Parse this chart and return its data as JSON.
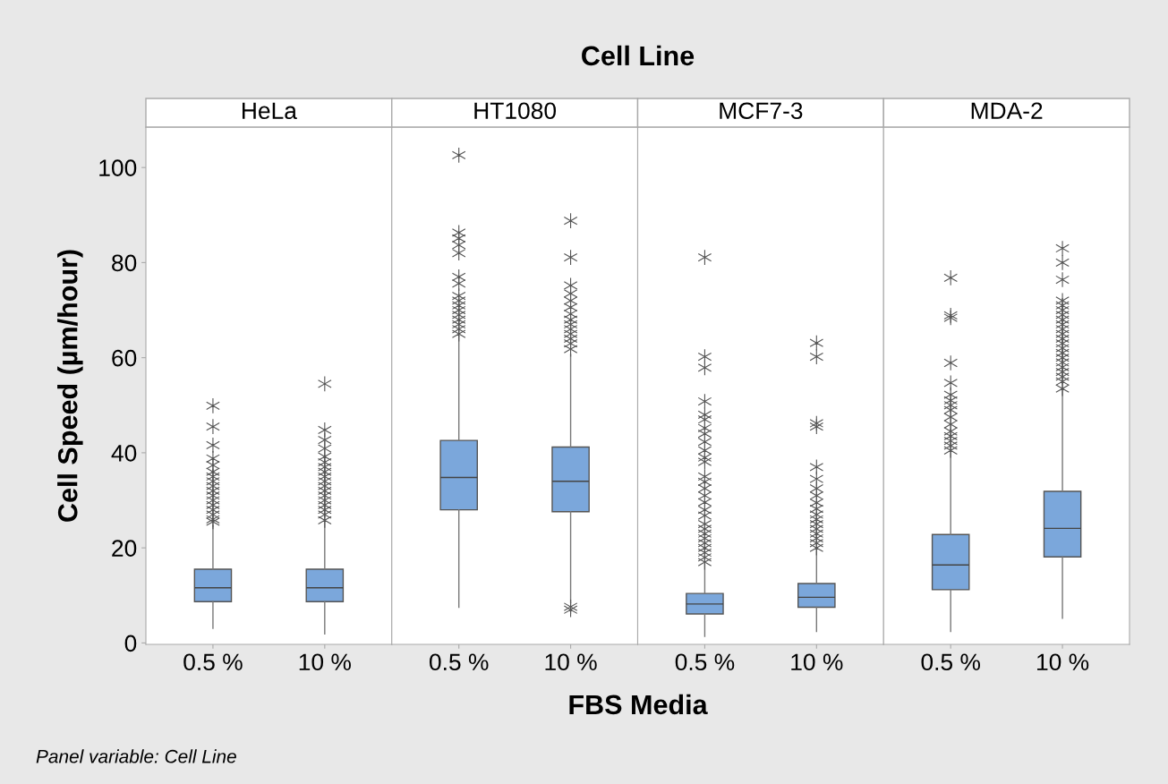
{
  "chart_data": [
    {
      "type": "box",
      "title": "HeLa",
      "ylabel": "Cell Speed (µm/hour)",
      "annotations": [
        "Cell Line",
        "FBS Media",
        "Panel variable: Cell Line"
      ],
      "categories": [
        "0.5 %",
        "10 %"
      ],
      "color": "#7ba7db",
      "marker": "star",
      "ylim": [
        -0.3,
        108.5
      ],
      "yticks": [
        0,
        20,
        40,
        60,
        80,
        100
      ],
      "grid": false,
      "boxes": [
        {
          "low": 3.1,
          "q1": 8.7,
          "median": 11.6,
          "q3": 15.5,
          "high": 24.6,
          "outliers": [
            25.5,
            26,
            27,
            28,
            29,
            30,
            31,
            32,
            33,
            34,
            35,
            36,
            37.4,
            38.8,
            41.6,
            45.5,
            49.9
          ]
        },
        {
          "low": 1.9,
          "q1": 8.7,
          "median": 11.6,
          "q3": 15.5,
          "high": 25.4,
          "outliers": [
            25.8,
            27,
            28,
            29,
            30,
            31,
            32,
            33,
            34,
            35,
            36,
            37,
            38,
            39.2,
            40.9,
            42.7,
            44.8,
            54.5
          ]
        }
      ]
    },
    {
      "type": "box",
      "title": "HT1080",
      "categories": [
        "0.5 %",
        "10 %"
      ],
      "color": "#7ba7db",
      "marker": "star",
      "ylim": [
        -0.3,
        108.5
      ],
      "tick_labels": "x",
      "grid": false,
      "boxes": [
        {
          "low": 7.5,
          "q1": 28.0,
          "median": 34.8,
          "q3": 42.6,
          "high": 64.6,
          "outliers": [
            65,
            66,
            67,
            68,
            69,
            70,
            71,
            72,
            73,
            75.6,
            77,
            82,
            83.7,
            85.1,
            86.3,
            102.6
          ]
        },
        {
          "low": 8.5,
          "q1": 27.6,
          "median": 34.0,
          "q3": 41.2,
          "high": 60.7,
          "outliers": [
            7.0,
            7.6,
            61.8,
            63,
            64,
            65,
            66,
            67,
            68,
            69.2,
            70.6,
            72,
            73.5,
            75.2,
            81.1,
            88.8
          ]
        }
      ]
    },
    {
      "type": "box",
      "title": "MCF7-3",
      "categories": [
        "0.5 %",
        "10 %"
      ],
      "color": "#7ba7db",
      "marker": "star",
      "ylim": [
        -0.3,
        108.5
      ],
      "tick_labels": "x",
      "grid": false,
      "boxes": [
        {
          "low": 1.4,
          "q1": 6.1,
          "median": 8.2,
          "q3": 10.4,
          "high": 16.5,
          "outliers": [
            17,
            18,
            19,
            20,
            21,
            22,
            23,
            24,
            25,
            26.8,
            28,
            29.6,
            31,
            32.5,
            33.9,
            35,
            38.1,
            39,
            40.5,
            42.3,
            44,
            45.2,
            47,
            48,
            50.8,
            57.9,
            60.2,
            81.1
          ]
        },
        {
          "low": 2.4,
          "q1": 7.5,
          "median": 9.6,
          "q3": 12.5,
          "high": 19.3,
          "outliers": [
            20,
            21,
            22,
            23,
            24,
            25,
            26,
            27,
            28.2,
            29.5,
            31,
            32.5,
            34.5,
            37,
            45.5,
            46.2,
            60.2,
            63.1
          ]
        }
      ]
    },
    {
      "type": "box",
      "title": "MDA-2",
      "categories": [
        "0.5 %",
        "10 %"
      ],
      "color": "#7ba7db",
      "marker": "star",
      "ylim": [
        -0.3,
        108.5
      ],
      "tick_labels": "x",
      "grid": false,
      "boxes": [
        {
          "low": 2.4,
          "q1": 11.2,
          "median": 16.4,
          "q3": 22.8,
          "high": 39.8,
          "outliers": [
            40.5,
            41.5,
            42.5,
            43.5,
            44.5,
            46,
            47.5,
            49,
            50,
            51,
            52.2,
            54.7,
            58.9,
            68.4,
            68.9,
            76.8
          ]
        },
        {
          "low": 5.2,
          "q1": 18.1,
          "median": 24.1,
          "q3": 31.9,
          "high": 53.0,
          "outliers": [
            53.5,
            55,
            56,
            57,
            58,
            59,
            60,
            61,
            62,
            63,
            64,
            65,
            66,
            67,
            68,
            69,
            70,
            71,
            72,
            76.4,
            80,
            83
          ]
        }
      ]
    }
  ]
}
